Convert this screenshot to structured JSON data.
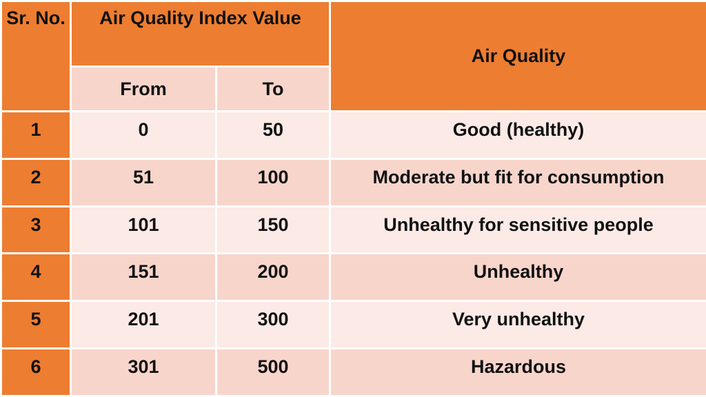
{
  "table": {
    "header": {
      "sr_no": "Sr. No.",
      "aqi_value": "Air Quality Index Value",
      "from": "From",
      "to": "To",
      "air_quality": "Air Quality"
    },
    "rows": [
      [
        1,
        0,
        50,
        "Good (healthy)"
      ],
      [
        2,
        51,
        100,
        "Moderate but fit for consumption"
      ],
      [
        3,
        101,
        150,
        "Unhealthy for sensitive people"
      ],
      [
        4,
        151,
        200,
        "Unhealthy"
      ],
      [
        5,
        201,
        300,
        "Very unhealthy"
      ],
      [
        6,
        301,
        500,
        "Hazardous"
      ]
    ]
  }
}
